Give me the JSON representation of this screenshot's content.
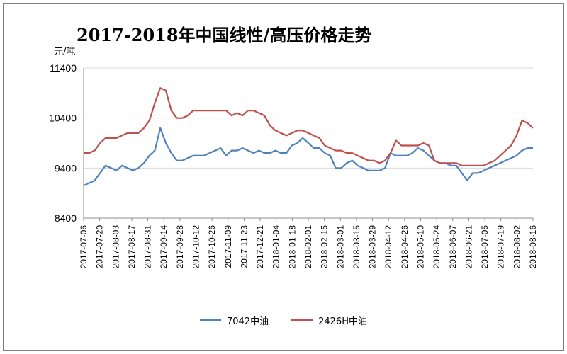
{
  "chart_data": {
    "type": "line",
    "title": "2017-2018年中国线性/高压价格走势",
    "ylabel": "元/吨",
    "ylim": [
      8400,
      11400
    ],
    "yticks": [
      8400,
      9400,
      10400,
      11400
    ],
    "x_tick_labels": [
      "2017-07-06",
      "2017-07-20",
      "2017-08-03",
      "2017-08-17",
      "2017-08-31",
      "2017-09-14",
      "2017-09-28",
      "2017-10-12",
      "2017-10-26",
      "2017-11-09",
      "2017-11-23",
      "2017-12-21",
      "2018-01-04",
      "2018-01-18",
      "2018-02-01",
      "2018-02-15",
      "2018-03-01",
      "2018-03-15",
      "2018-03-29",
      "2018-04-12",
      "2018-04-26",
      "2018-05-10",
      "2018-05-24",
      "2018-06-07",
      "2018-06-21",
      "2018-07-05",
      "2018-07-19",
      "2018-08-02",
      "2018-08-16"
    ],
    "series": [
      {
        "name": "7042中油",
        "color": "#4f81bd",
        "values": [
          9050,
          9100,
          9150,
          9300,
          9450,
          9400,
          9350,
          9450,
          9400,
          9350,
          9400,
          9500,
          9650,
          9750,
          10200,
          9900,
          9700,
          9550,
          9550,
          9600,
          9650,
          9650,
          9650,
          9700,
          9750,
          9800,
          9650,
          9750,
          9750,
          9800,
          9750,
          9700,
          9750,
          9700,
          9700,
          9750,
          9700,
          9700,
          9850,
          9900,
          10000,
          9900,
          9800,
          9800,
          9700,
          9650,
          9400,
          9400,
          9500,
          9550,
          9450,
          9400,
          9350,
          9350,
          9350,
          9400,
          9700,
          9650,
          9650,
          9650,
          9700,
          9800,
          9750,
          9650,
          9550,
          9500,
          9500,
          9450,
          9450,
          9300,
          9150,
          9300,
          9300,
          9350,
          9400,
          9450,
          9500,
          9550,
          9600,
          9650,
          9750,
          9800,
          9800
        ]
      },
      {
        "name": "2426H中油",
        "color": "#c0504d",
        "values": [
          9700,
          9700,
          9750,
          9900,
          10000,
          10000,
          10000,
          10050,
          10100,
          10100,
          10100,
          10200,
          10350,
          10700,
          11000,
          10950,
          10550,
          10400,
          10400,
          10450,
          10550,
          10550,
          10550,
          10550,
          10550,
          10550,
          10550,
          10450,
          10500,
          10450,
          10550,
          10550,
          10500,
          10450,
          10250,
          10150,
          10100,
          10050,
          10100,
          10150,
          10150,
          10100,
          10050,
          10000,
          9850,
          9800,
          9750,
          9750,
          9700,
          9700,
          9650,
          9600,
          9550,
          9550,
          9500,
          9550,
          9700,
          9950,
          9850,
          9850,
          9850,
          9850,
          9900,
          9850,
          9550,
          9500,
          9500,
          9500,
          9500,
          9450,
          9450,
          9450,
          9450,
          9450,
          9500,
          9550,
          9650,
          9750,
          9850,
          10050,
          10350,
          10300,
          10200
        ]
      }
    ],
    "legend_position": "bottom"
  }
}
